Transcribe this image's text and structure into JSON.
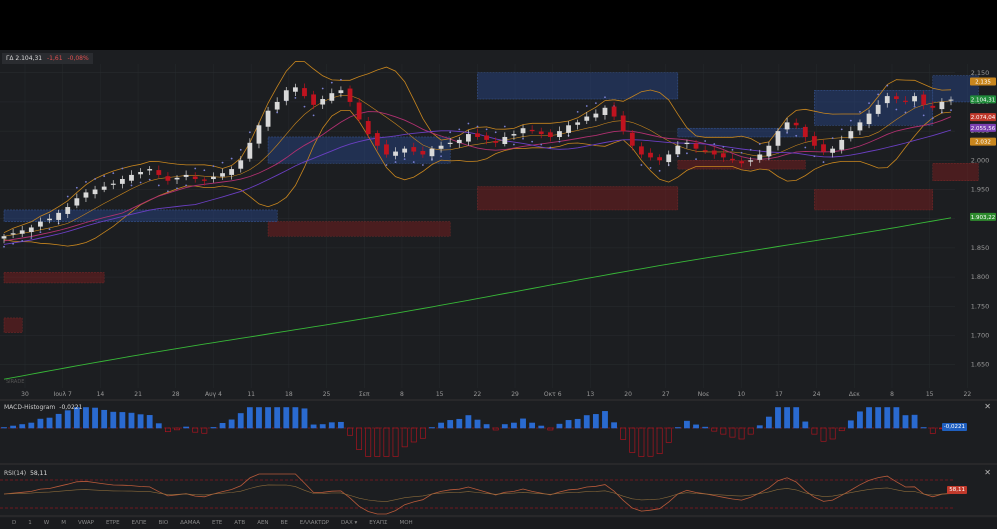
{
  "header": {
    "symbol": "ΓΔ",
    "last": "2.104,31",
    "change": "-1,61",
    "change_pct": "-0,08%"
  },
  "chart_data": {
    "type": "candlestick",
    "ylim": [
      1610,
      2165
    ],
    "y_ticks": [
      "2.150",
      "2.100",
      "2.050",
      "2.000",
      "1.950",
      "1.900",
      "1.850",
      "1.800",
      "1.750",
      "1.700",
      "1.650"
    ],
    "y_tick_values": [
      2150,
      2100,
      2050,
      2000,
      1950,
      1900,
      1850,
      1800,
      1750,
      1700,
      1650
    ],
    "x_ticks": [
      "30",
      "Ιουλ 7",
      "14",
      "21",
      "28",
      "Αυγ 4",
      "11",
      "18",
      "25",
      "Σεπ",
      "8",
      "15",
      "22",
      "29",
      "Οκτ 6",
      "13",
      "20",
      "27",
      "Νοε",
      "10",
      "17",
      "24",
      "Δεκ",
      "8",
      "15",
      "22"
    ],
    "close": [
      1870,
      1875,
      1880,
      1885,
      1895,
      1900,
      1910,
      1920,
      1935,
      1945,
      1950,
      1955,
      1960,
      1968,
      1975,
      1980,
      1985,
      1975,
      1965,
      1970,
      1975,
      1968,
      1965,
      1972,
      1978,
      1985,
      2000,
      2030,
      2060,
      2085,
      2100,
      2120,
      2125,
      2110,
      2095,
      2105,
      2115,
      2120,
      2100,
      2070,
      2045,
      2025,
      2010,
      2015,
      2020,
      2015,
      2010,
      2020,
      2025,
      2030,
      2035,
      2045,
      2040,
      2035,
      2030,
      2040,
      2045,
      2055,
      2050,
      2045,
      2040,
      2050,
      2060,
      2065,
      2075,
      2080,
      2090,
      2075,
      2050,
      2025,
      2010,
      2005,
      2000,
      2010,
      2025,
      2030,
      2020,
      2015,
      2010,
      2005,
      2000,
      1995,
      2000,
      2010,
      2025,
      2050,
      2065,
      2060,
      2040,
      2025,
      2015,
      2020,
      2035,
      2050,
      2065,
      2080,
      2095,
      2110,
      2105,
      2100,
      2110,
      2095,
      2090,
      2100,
      2104
    ],
    "overlays": {
      "ma_short": 2074.04,
      "ma_mid": 2055.56,
      "ma_long": 1903.22,
      "upper_band": 2135,
      "lower_band": 2032
    },
    "price_labels": [
      {
        "text": "2.135",
        "value": 2135,
        "color": "#c8861e"
      },
      {
        "text": "2.104,31",
        "value": 2104.31,
        "color": "#1f8a3a"
      },
      {
        "text": "2.074,04",
        "value": 2074.04,
        "color": "#c0392b"
      },
      {
        "text": "2.055,56",
        "value": 2055.56,
        "color": "#7a3fb0"
      },
      {
        "text": "2.032",
        "value": 2032,
        "color": "#c8861e"
      },
      {
        "text": "1.903,22",
        "value": 1903.22,
        "color": "#2e8b2e"
      }
    ],
    "zones": [
      {
        "kind": "supply",
        "x0": 0,
        "x1": 11,
        "lo": 1790,
        "hi": 1808
      },
      {
        "kind": "supply",
        "x0": 0,
        "x1": 2,
        "lo": 1705,
        "hi": 1730
      },
      {
        "kind": "supply",
        "x0": 29,
        "x1": 49,
        "lo": 1870,
        "hi": 1895
      },
      {
        "kind": "demand",
        "x0": 0,
        "x1": 30,
        "lo": 1895,
        "hi": 1915
      },
      {
        "kind": "demand",
        "x0": 29,
        "x1": 49,
        "lo": 1995,
        "hi": 2040
      },
      {
        "kind": "supply",
        "x0": 52,
        "x1": 74,
        "lo": 1915,
        "hi": 1955
      },
      {
        "kind": "demand",
        "x0": 52,
        "x1": 74,
        "lo": 2105,
        "hi": 2150
      },
      {
        "kind": "demand",
        "x0": 74,
        "x1": 88,
        "lo": 2040,
        "hi": 2055
      },
      {
        "kind": "supply",
        "x0": 74,
        "x1": 88,
        "lo": 1985,
        "hi": 2000
      },
      {
        "kind": "demand",
        "x0": 89,
        "x1": 102,
        "lo": 2060,
        "hi": 2120
      },
      {
        "kind": "supply",
        "x0": 89,
        "x1": 102,
        "lo": 1915,
        "hi": 1950
      },
      {
        "kind": "demand",
        "x0": 102,
        "x1": 107,
        "lo": 2100,
        "hi": 2145
      },
      {
        "kind": "supply",
        "x0": 102,
        "x1": 107,
        "lo": 1965,
        "hi": 1995
      }
    ]
  },
  "macd": {
    "label": "MACD-Histogram",
    "value": "-0,0221",
    "badge": "-0,0221",
    "badge_color": "#1f5fbf"
  },
  "rsi": {
    "label": "RSI(14)",
    "value": "58,11",
    "badge": "58,11",
    "badge_color": "#c0392b",
    "period": 14
  },
  "watermark": "SIRADE",
  "toolbar": {
    "items": [
      "D",
      "1",
      "W",
      "M",
      "VWAP",
      "ΕΤΡΕ",
      "ΕΛΠΕ",
      "ΒΙΟ",
      "ΔΑΜΑΑ",
      "ΕΤΕ",
      "ΑΤΒ",
      "ΑΕΝ",
      "ΒΕ",
      "ΕΛΛΑΚΤΩΡ",
      "DAX ▾",
      "ΕΥΑΠΣ",
      "ΜΟΗ"
    ]
  },
  "colors": {
    "up": "#d9d9d9",
    "down": "#c0131f",
    "bb": "#c8861e",
    "ma200": "#38b838",
    "ma_purple": "#6a3fc2",
    "ma_red": "#b03070",
    "psar": "#7a7fd0",
    "macd_pos": "#2a6ad0",
    "macd_neg": "#c0131f",
    "grid": "#2a2d31"
  }
}
